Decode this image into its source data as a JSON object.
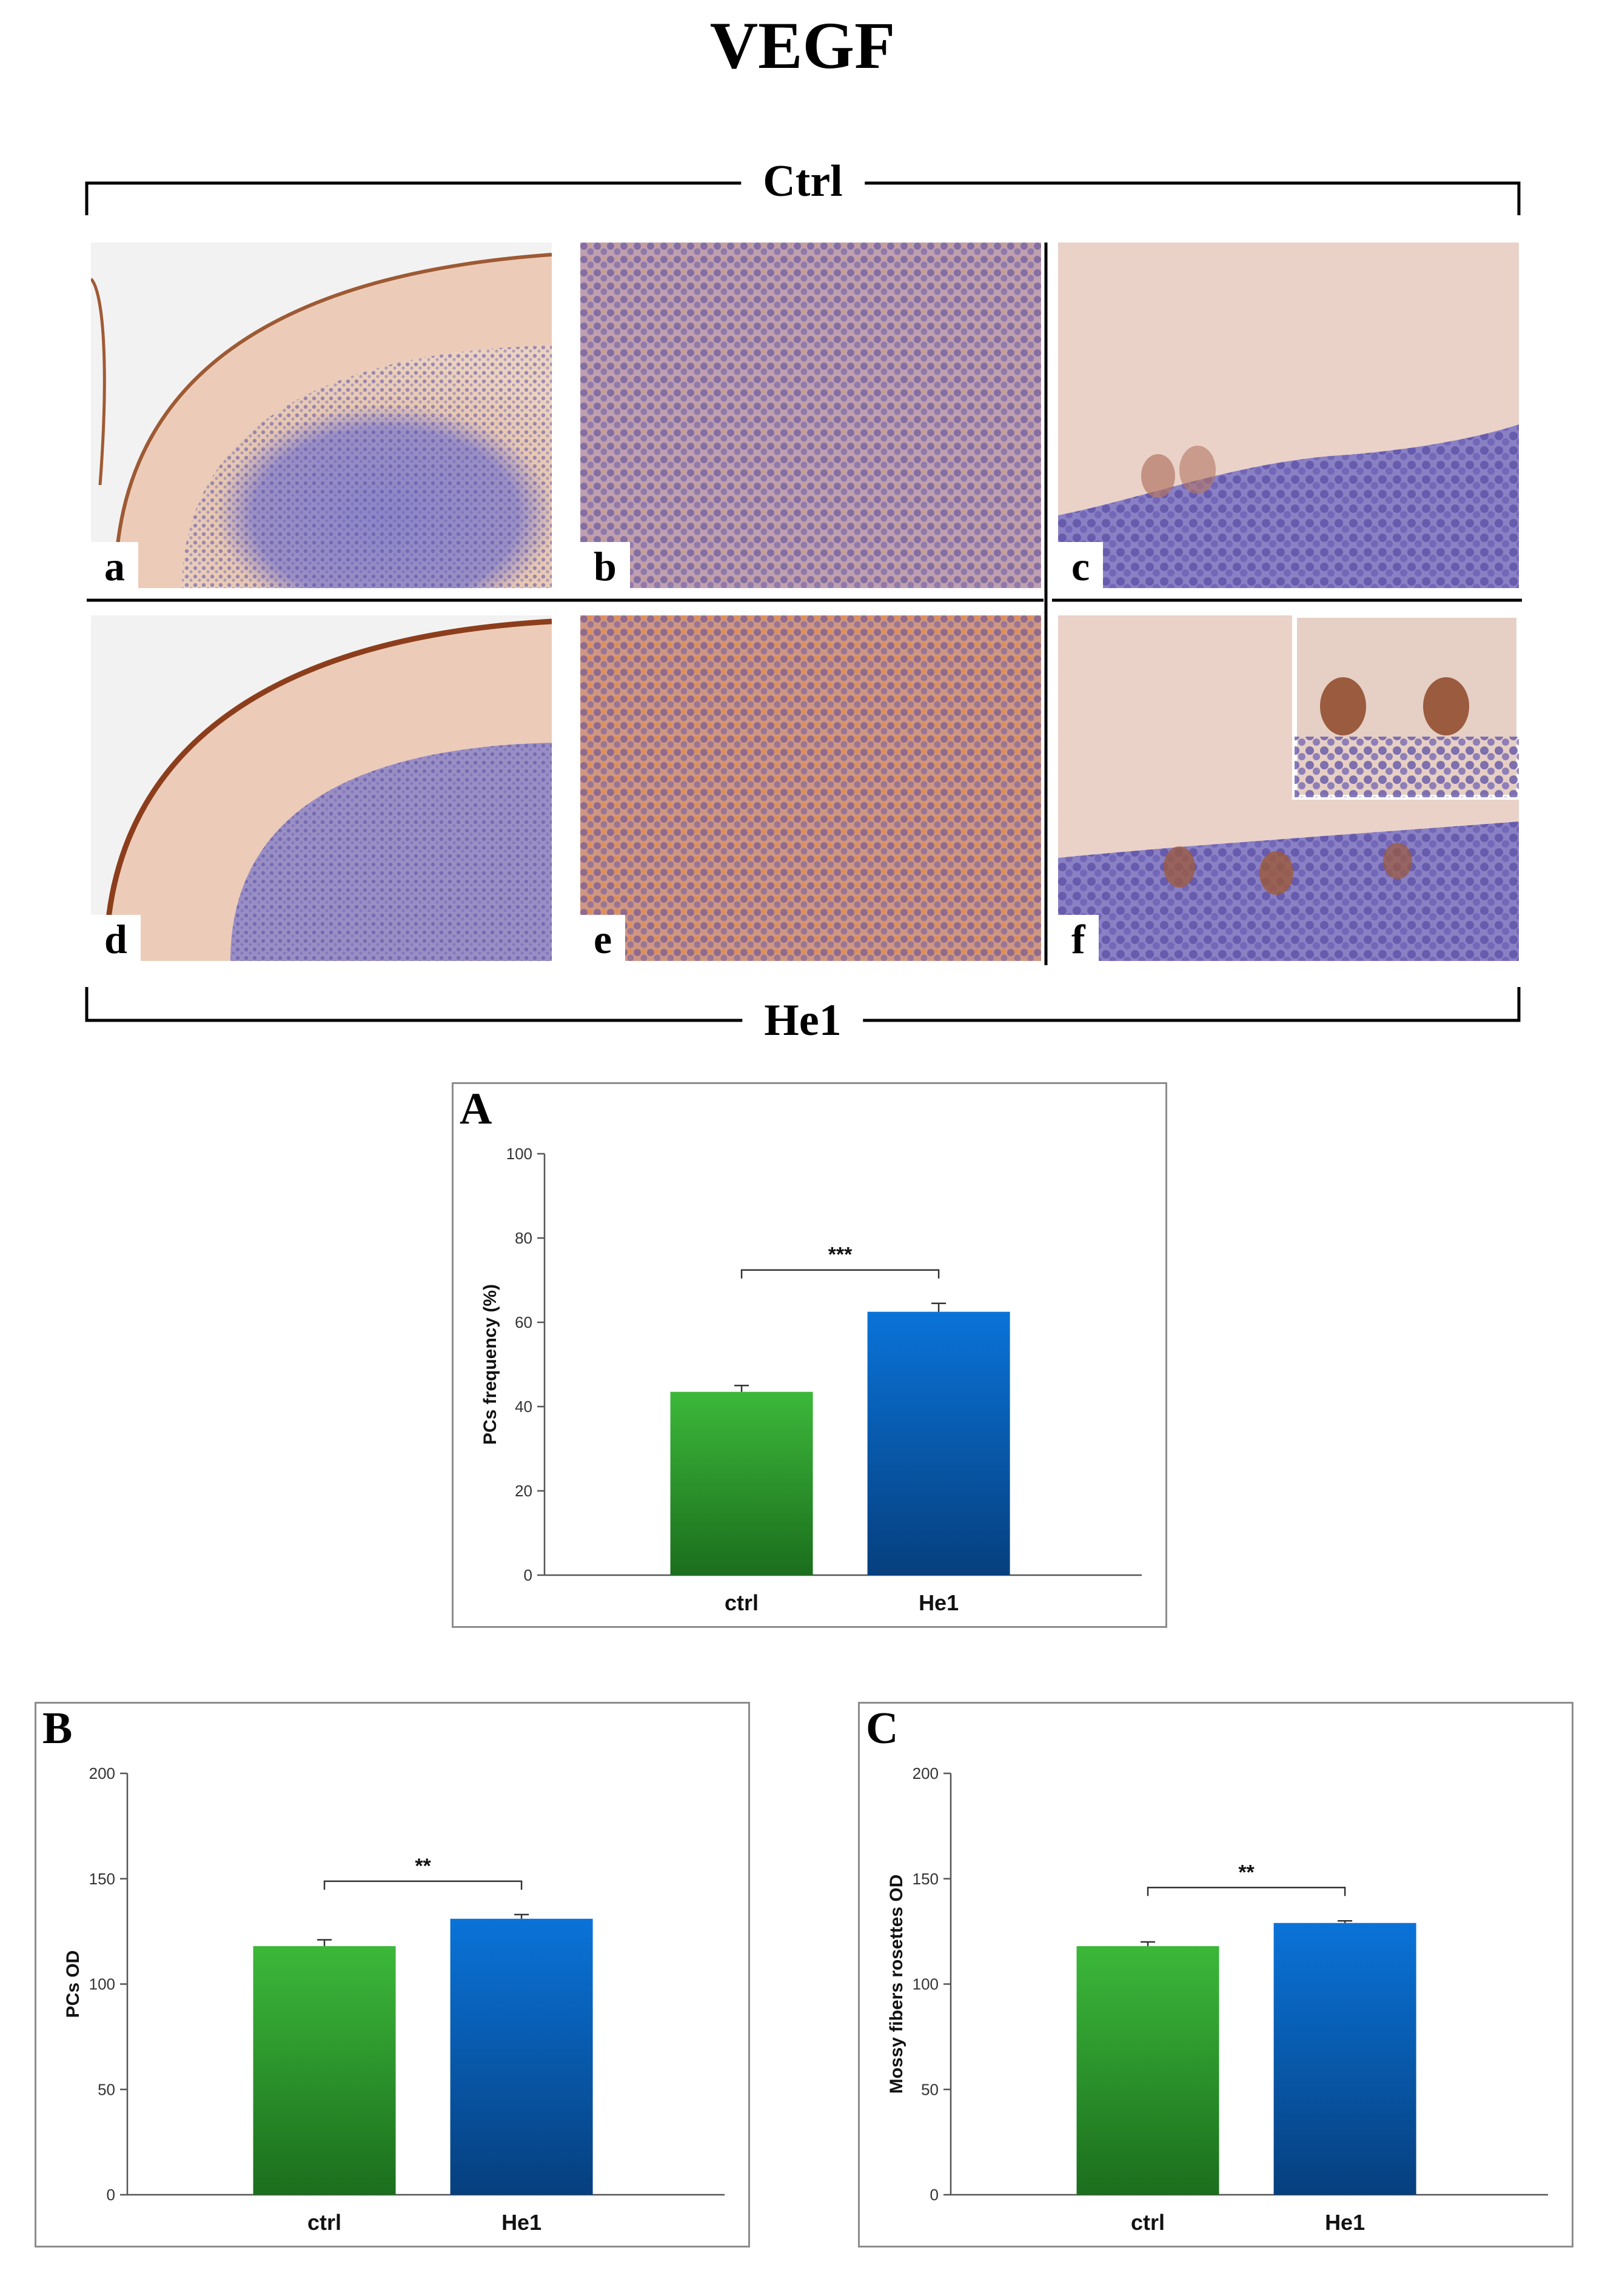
{
  "figure": {
    "title": "VEGF",
    "group_top": "Ctrl",
    "group_bottom": "He1"
  },
  "micrographs": [
    {
      "letter": "a",
      "row": "Ctrl",
      "magnification": "low"
    },
    {
      "letter": "b",
      "row": "Ctrl",
      "magnification": "medium"
    },
    {
      "letter": "c",
      "row": "Ctrl",
      "magnification": "high"
    },
    {
      "letter": "d",
      "row": "He1",
      "magnification": "low"
    },
    {
      "letter": "e",
      "row": "He1",
      "magnification": "medium"
    },
    {
      "letter": "f",
      "row": "He1",
      "magnification": "high"
    }
  ],
  "colors": {
    "ctrl_top": "#3cb83a",
    "ctrl_bottom": "#1b6e1d",
    "he1_top": "#0a73d8",
    "he1_bottom": "#063f7e",
    "tissue_pink": "#e8c2b0",
    "nuclei_blue": "#6a5fb4",
    "stain_brown": "#a8582d"
  },
  "chart_data": [
    {
      "panel": "A",
      "type": "bar",
      "categories": [
        "ctrl",
        "He1"
      ],
      "values": [
        43.5,
        62.5
      ],
      "errors": [
        1.5,
        2.0
      ],
      "ylabel": "PCs frequency (%)",
      "ylim": [
        0,
        100
      ],
      "yticks": [
        "0",
        "20",
        "40",
        "60",
        "80",
        "100"
      ],
      "significance": "***",
      "grid": false,
      "legend": "none"
    },
    {
      "panel": "B",
      "type": "bar",
      "categories": [
        "ctrl",
        "He1"
      ],
      "values": [
        118,
        131
      ],
      "errors": [
        3,
        2
      ],
      "ylabel": "PCs OD",
      "ylim": [
        0,
        200
      ],
      "yticks": [
        "0",
        "50",
        "100",
        "150",
        "200"
      ],
      "significance": "**",
      "grid": false,
      "legend": "none"
    },
    {
      "panel": "C",
      "type": "bar",
      "categories": [
        "ctrl",
        "He1"
      ],
      "values": [
        118,
        129
      ],
      "errors": [
        2,
        1
      ],
      "ylabel": "Mossy fibers rosettes OD",
      "ylim": [
        0,
        200
      ],
      "yticks": [
        "0",
        "50",
        "100",
        "150",
        "200"
      ],
      "significance": "**",
      "grid": false,
      "legend": "none"
    }
  ]
}
